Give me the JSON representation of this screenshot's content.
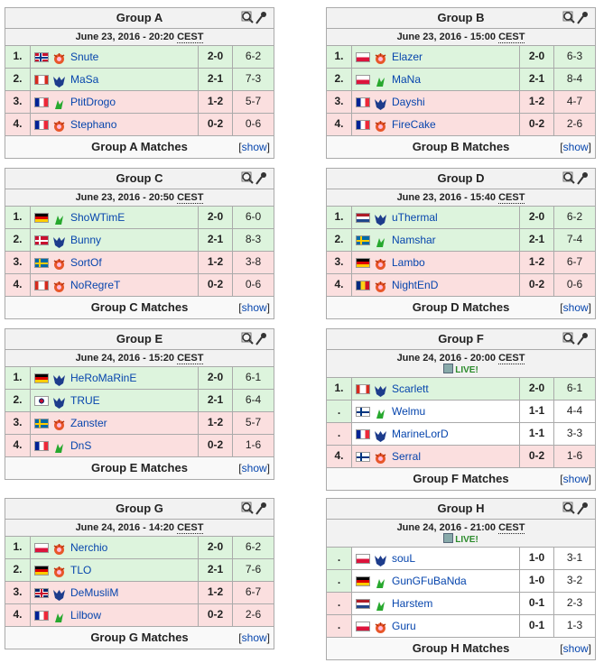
{
  "toggle_brackets": [
    "[",
    "]"
  ],
  "toggle": "show",
  "groups": [
    {
      "title": "Group A",
      "date": "June 23, 2016 - 20:20",
      "timezone": "CEST",
      "footer": "Group A Matches",
      "rows": [
        {
          "rank": "1.",
          "player": "Snute",
          "series": "2-0",
          "maps": "6-2",
          "color": "#ddf4dd",
          "rank_color": "#ddf4dd"
        },
        {
          "rank": "2.",
          "player": "MaSa",
          "series": "2-1",
          "maps": "7-3",
          "color": "#ddf4dd",
          "rank_color": "#ddf4dd"
        },
        {
          "rank": "3.",
          "player": "PtitDrogo",
          "series": "1-2",
          "maps": "5-7",
          "color": "#fbdfdf",
          "rank_color": "#fbdfdf"
        },
        {
          "rank": "4.",
          "player": "Stephano",
          "series": "0-2",
          "maps": "0-6",
          "color": "#fbdfdf",
          "rank_color": "#fbdfdf"
        }
      ]
    },
    {
      "title": "Group B",
      "date": "June 23, 2016 - 15:00",
      "timezone": "CEST",
      "footer": "Group B Matches",
      "rows": [
        {
          "rank": "1.",
          "player": "Elazer",
          "series": "2-0",
          "maps": "6-3",
          "color": "#ddf4dd",
          "rank_color": "#ddf4dd"
        },
        {
          "rank": "2.",
          "player": "MaNa",
          "series": "2-1",
          "maps": "8-4",
          "color": "#ddf4dd",
          "rank_color": "#ddf4dd"
        },
        {
          "rank": "3.",
          "player": "Dayshi",
          "series": "1-2",
          "maps": "4-7",
          "color": "#fbdfdf",
          "rank_color": "#fbdfdf"
        },
        {
          "rank": "4.",
          "player": "FireCake",
          "series": "0-2",
          "maps": "2-6",
          "color": "#fbdfdf",
          "rank_color": "#fbdfdf"
        }
      ]
    },
    {
      "title": "Group C",
      "date": "June 23, 2016 - 20:50",
      "timezone": "CEST",
      "footer": "Group C Matches",
      "rows": [
        {
          "rank": "1.",
          "player": "ShoWTimE",
          "series": "2-0",
          "maps": "6-0",
          "color": "#ddf4dd",
          "rank_color": "#ddf4dd"
        },
        {
          "rank": "2.",
          "player": "Bunny",
          "series": "2-1",
          "maps": "8-3",
          "color": "#ddf4dd",
          "rank_color": "#ddf4dd"
        },
        {
          "rank": "3.",
          "player": "SortOf",
          "series": "1-2",
          "maps": "3-8",
          "color": "#fbdfdf",
          "rank_color": "#fbdfdf"
        },
        {
          "rank": "4.",
          "player": "NoRegreT",
          "series": "0-2",
          "maps": "0-6",
          "color": "#fbdfdf",
          "rank_color": "#fbdfdf"
        }
      ]
    },
    {
      "title": "Group D",
      "date": "June 23, 2016 - 15:40",
      "timezone": "CEST",
      "footer": "Group D Matches",
      "rows": [
        {
          "rank": "1.",
          "player": "uThermal",
          "series": "2-0",
          "maps": "6-2",
          "color": "#ddf4dd",
          "rank_color": "#ddf4dd"
        },
        {
          "rank": "2.",
          "player": "Namshar",
          "series": "2-1",
          "maps": "7-4",
          "color": "#ddf4dd",
          "rank_color": "#ddf4dd"
        },
        {
          "rank": "3.",
          "player": "Lambo",
          "series": "1-2",
          "maps": "6-7",
          "color": "#fbdfdf",
          "rank_color": "#fbdfdf"
        },
        {
          "rank": "4.",
          "player": "NightEnD",
          "series": "0-2",
          "maps": "0-6",
          "color": "#fbdfdf",
          "rank_color": "#fbdfdf"
        }
      ]
    },
    {
      "title": "Group E",
      "date": "June 24, 2016 - 15:20",
      "timezone": "CEST",
      "footer": "Group E Matches",
      "rows": [
        {
          "rank": "1.",
          "player": "HeRoMaRinE",
          "series": "2-0",
          "maps": "6-1",
          "color": "#ddf4dd",
          "rank_color": "#ddf4dd"
        },
        {
          "rank": "2.",
          "player": "TRUE",
          "series": "2-1",
          "maps": "6-4",
          "color": "#ddf4dd",
          "rank_color": "#ddf4dd"
        },
        {
          "rank": "3.",
          "player": "Zanster",
          "series": "1-2",
          "maps": "5-7",
          "color": "#fbdfdf",
          "rank_color": "#fbdfdf"
        },
        {
          "rank": "4.",
          "player": "DnS",
          "series": "0-2",
          "maps": "1-6",
          "color": "#fbdfdf",
          "rank_color": "#fbdfdf"
        }
      ]
    },
    {
      "title": "Group F",
      "date": "June 24, 2016 - 20:00",
      "timezone": "CEST",
      "live": "LIVE!",
      "footer": "Group F Matches",
      "rows": [
        {
          "rank": "1.",
          "player": "Scarlett",
          "series": "2-0",
          "maps": "6-1",
          "color": "#ddf4dd",
          "rank_color": "#ddf4dd"
        },
        {
          "rank": ".",
          "player": "Welmu",
          "series": "1-1",
          "maps": "4-4",
          "color": "#ffffff",
          "rank_color": "#ddf4dd"
        },
        {
          "rank": ".",
          "player": "MarineLorD",
          "series": "1-1",
          "maps": "3-3",
          "color": "#ffffff",
          "rank_color": "#fbdfdf"
        },
        {
          "rank": "4.",
          "player": "Serral",
          "series": "0-2",
          "maps": "1-6",
          "color": "#fbdfdf",
          "rank_color": "#fbdfdf"
        }
      ]
    },
    {
      "title": "Group G",
      "date": "June 24, 2016 - 14:20",
      "timezone": "CEST",
      "footer": "Group G Matches",
      "rows": [
        {
          "rank": "1.",
          "player": "Nerchio",
          "series": "2-0",
          "maps": "6-2",
          "color": "#ddf4dd",
          "rank_color": "#ddf4dd"
        },
        {
          "rank": "2.",
          "player": "TLO",
          "series": "2-1",
          "maps": "7-6",
          "color": "#ddf4dd",
          "rank_color": "#ddf4dd"
        },
        {
          "rank": "3.",
          "player": "DeMusliM",
          "series": "1-2",
          "maps": "6-7",
          "color": "#fbdfdf",
          "rank_color": "#fbdfdf"
        },
        {
          "rank": "4.",
          "player": "Lilbow",
          "series": "0-2",
          "maps": "2-6",
          "color": "#fbdfdf",
          "rank_color": "#fbdfdf"
        }
      ]
    },
    {
      "title": "Group H",
      "date": "June 24, 2016 - 21:00",
      "timezone": "CEST",
      "live": "LIVE!",
      "footer": "Group H Matches",
      "rows": [
        {
          "rank": ".",
          "player": "souL",
          "series": "1-0",
          "maps": "3-1",
          "color": "#ffffff",
          "rank_color": "#ddf4dd"
        },
        {
          "rank": ".",
          "player": "GunGFuBaNda",
          "series": "1-0",
          "maps": "3-2",
          "color": "#ffffff",
          "rank_color": "#ddf4dd"
        },
        {
          "rank": ".",
          "player": "Harstem",
          "series": "0-1",
          "maps": "2-3",
          "color": "#ffffff",
          "rank_color": "#fbdfdf"
        },
        {
          "rank": ".",
          "player": "Guru",
          "series": "0-1",
          "maps": "1-3",
          "color": "#ffffff",
          "rank_color": "#fbdfdf"
        }
      ]
    }
  ]
}
